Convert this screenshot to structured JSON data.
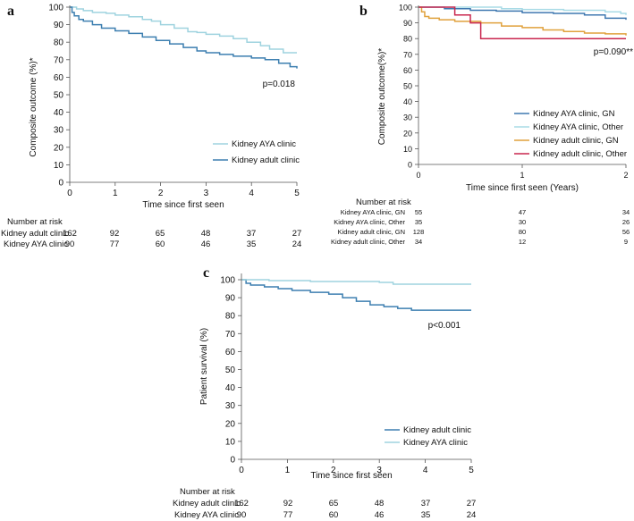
{
  "panels": {
    "a": {
      "label": "a",
      "ylabel": "Composite outcome (%)*",
      "xlabel": "Time since first seen",
      "pvalue": "p=0.018",
      "yticks": [
        "0",
        "10",
        "20",
        "30",
        "40",
        "50",
        "60",
        "70",
        "80",
        "90",
        "100"
      ],
      "xticks": [
        "0",
        "1",
        "2",
        "3",
        "4",
        "5"
      ],
      "legend": [
        "Kidney AYA clinic",
        "Kidney adult clinic"
      ],
      "risk_title": "Number at risk",
      "risk_rows": [
        {
          "label": "Kidney adult clinic",
          "values": [
            "162",
            "92",
            "65",
            "48",
            "37",
            "27"
          ]
        },
        {
          "label": "Kidney AYA clinic",
          "values": [
            "90",
            "77",
            "60",
            "46",
            "35",
            "24"
          ]
        }
      ]
    },
    "b": {
      "label": "b",
      "ylabel": "Composite outcome(%)*",
      "xlabel": "Time since first seen (Years)",
      "pvalue": "p=0.090**",
      "yticks": [
        "0",
        "10",
        "20",
        "30",
        "40",
        "50",
        "60",
        "70",
        "80",
        "90",
        "100"
      ],
      "xticks": [
        "0",
        "1",
        "2"
      ],
      "legend": [
        "Kidney AYA clinic, GN",
        "Kidney AYA clinic, Other",
        "Kidney adult clinic, GN",
        "Kidney adult clinic, Other"
      ],
      "risk_title": "Number at risk",
      "risk_rows": [
        {
          "label": "Kidney AYA clinic, GN",
          "values": [
            "55",
            "47",
            "34"
          ]
        },
        {
          "label": "Kidney AYA clinic, Other",
          "values": [
            "35",
            "30",
            "26"
          ]
        },
        {
          "label": "Kidney adult clinic, GN",
          "values": [
            "128",
            "80",
            "56"
          ]
        },
        {
          "label": "Kidney adult clinic, Other",
          "values": [
            "34",
            "12",
            "9"
          ]
        }
      ]
    },
    "c": {
      "label": "c",
      "ylabel": "Patient survival (%)",
      "xlabel": "Time since first seen",
      "pvalue": "p<0.001",
      "yticks": [
        "0",
        "10",
        "20",
        "30",
        "40",
        "50",
        "60",
        "70",
        "80",
        "90",
        "100"
      ],
      "xticks": [
        "0",
        "1",
        "2",
        "3",
        "4",
        "5"
      ],
      "legend": [
        "Kidney adult clinic",
        "Kidney AYA clinic"
      ],
      "risk_title": "Number at risk",
      "risk_rows": [
        {
          "label": "Kidney adult clinic",
          "values": [
            "162",
            "92",
            "65",
            "48",
            "37",
            "27"
          ]
        },
        {
          "label": "Kidney AYA clinic",
          "values": [
            "90",
            "77",
            "60",
            "46",
            "35",
            "24"
          ]
        }
      ]
    }
  },
  "colors": {
    "aya": "#9fd3df",
    "adult": "#3d7fb0",
    "gn_aya": "#3f78b0",
    "other_aya": "#a9dbe6",
    "gn_adult": "#e0a13c",
    "other_adult": "#c8264e"
  },
  "chart_data": [
    {
      "type": "line",
      "title": "a",
      "xlabel": "Time since first seen",
      "ylabel": "Composite outcome (%)*",
      "xlim": [
        0,
        5
      ],
      "ylim": [
        0,
        100
      ],
      "series": [
        {
          "name": "Kidney AYA clinic",
          "color": "#9fd3df",
          "x": [
            0,
            0.15,
            0.3,
            0.5,
            0.8,
            1.0,
            1.3,
            1.6,
            1.8,
            2.0,
            2.3,
            2.6,
            2.8,
            3.0,
            3.3,
            3.6,
            3.9,
            4.2,
            4.4,
            4.7,
            5.0
          ],
          "y": [
            100,
            99,
            98,
            97,
            96.5,
            95.5,
            94.5,
            93,
            92,
            90,
            88,
            86,
            85.5,
            84.5,
            83.5,
            82,
            80,
            78,
            76,
            74,
            74
          ]
        },
        {
          "name": "Kidney adult clinic",
          "color": "#3d7fb0",
          "x": [
            0,
            0.05,
            0.1,
            0.2,
            0.3,
            0.5,
            0.7,
            1.0,
            1.3,
            1.6,
            1.9,
            2.2,
            2.5,
            2.8,
            3.0,
            3.3,
            3.6,
            4.0,
            4.3,
            4.6,
            4.85,
            5.0
          ],
          "y": [
            100,
            97,
            95,
            93,
            92,
            90,
            88,
            86.5,
            85,
            83,
            81,
            79,
            77,
            75,
            74,
            73,
            72,
            71,
            70,
            68,
            66,
            65
          ]
        }
      ]
    },
    {
      "type": "line",
      "title": "b",
      "xlabel": "Time since first seen (Years)",
      "ylabel": "Composite outcome(%)*",
      "xlim": [
        0,
        2
      ],
      "ylim": [
        0,
        100
      ],
      "series": [
        {
          "name": "Kidney AYA clinic, GN",
          "color": "#3f78b0",
          "x": [
            0,
            0.25,
            0.5,
            0.75,
            1.0,
            1.3,
            1.6,
            1.8,
            2.0
          ],
          "y": [
            100,
            99,
            98,
            97.5,
            96.5,
            96,
            95,
            93,
            92
          ]
        },
        {
          "name": "Kidney AYA clinic, Other",
          "color": "#a9dbe6",
          "x": [
            0,
            0.4,
            0.8,
            1.0,
            1.4,
            1.8,
            1.95,
            2.0
          ],
          "y": [
            100,
            100,
            99,
            98.5,
            98,
            97,
            96,
            95
          ]
        },
        {
          "name": "Kidney adult clinic, GN",
          "color": "#e0a13c",
          "x": [
            0,
            0.03,
            0.06,
            0.1,
            0.2,
            0.35,
            0.6,
            0.8,
            1.0,
            1.2,
            1.4,
            1.6,
            1.8,
            2.0
          ],
          "y": [
            100,
            97,
            94,
            93,
            92,
            91,
            90,
            88,
            87,
            85.5,
            84.5,
            83.5,
            83,
            82
          ]
        },
        {
          "name": "Kidney adult clinic, Other",
          "color": "#c8264e",
          "x": [
            0,
            0.2,
            0.35,
            0.5,
            0.6,
            1.0,
            1.5,
            2.0
          ],
          "y": [
            100,
            100,
            95,
            90,
            80,
            80,
            80,
            80
          ]
        }
      ]
    },
    {
      "type": "line",
      "title": "c",
      "xlabel": "Time since first seen",
      "ylabel": "Patient survival (%)",
      "xlim": [
        0,
        5
      ],
      "ylim": [
        0,
        100
      ],
      "series": [
        {
          "name": "Kidney adult clinic",
          "color": "#3d7fb0",
          "x": [
            0,
            0.1,
            0.2,
            0.5,
            0.8,
            1.1,
            1.5,
            1.9,
            2.2,
            2.5,
            2.8,
            3.1,
            3.4,
            3.7,
            4.0,
            4.5,
            5.0
          ],
          "y": [
            100,
            98,
            97,
            96,
            95,
            94,
            93,
            92,
            90,
            88,
            86,
            85,
            84,
            83,
            83,
            83,
            83
          ]
        },
        {
          "name": "Kidney AYA clinic",
          "color": "#9fd3df",
          "x": [
            0,
            0.3,
            0.6,
            1.0,
            1.5,
            2.0,
            2.5,
            3.0,
            3.3,
            4.0,
            4.5,
            5.0
          ],
          "y": [
            100,
            100,
            99.5,
            99.5,
            99,
            99,
            99,
            98.5,
            97.5,
            97.5,
            97.5,
            97.5
          ]
        }
      ]
    }
  ]
}
